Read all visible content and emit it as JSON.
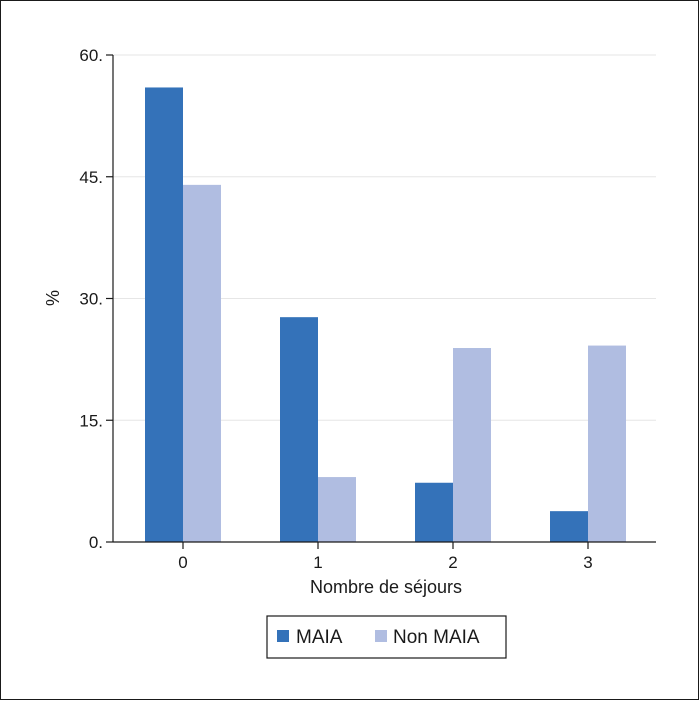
{
  "chart_data": {
    "type": "bar",
    "title": "",
    "xlabel": "Nombre de séjours",
    "ylabel": "%",
    "categories": [
      "0",
      "1",
      "2",
      "3"
    ],
    "series": [
      {
        "name": "MAIA",
        "values": [
          56.0,
          27.7,
          7.3,
          3.8
        ]
      },
      {
        "name": "Non MAIA",
        "values": [
          44.0,
          8.0,
          23.9,
          24.2
        ]
      }
    ],
    "ylim": [
      0,
      60
    ],
    "yticks": [
      "0.",
      "15.",
      "30.",
      "45.",
      "60."
    ],
    "grid": true,
    "legend_position": "bottom"
  },
  "colors": {
    "MAIA": "#3472b9",
    "Non MAIA": "#b0bde1",
    "grid": "#e6e6e6",
    "axis": "#1a1a1a"
  }
}
